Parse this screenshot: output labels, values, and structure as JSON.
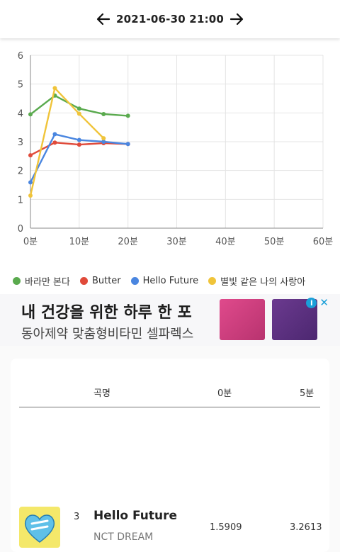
{
  "header": {
    "datetime": "2021-06-30 21:00",
    "prev_icon": "arrow-left-icon",
    "next_icon": "arrow-right-icon"
  },
  "chart_data": {
    "type": "line",
    "x_ticks": [
      "0분",
      "10분",
      "20분",
      "30분",
      "40분",
      "50분",
      "60분"
    ],
    "y_ticks": [
      "0",
      "1",
      "2",
      "3",
      "4",
      "5",
      "6"
    ],
    "xlim": [
      0,
      60
    ],
    "ylim": [
      0,
      6
    ],
    "grid": true,
    "legend_position": "bottom",
    "series": [
      {
        "name": "바라만 본다",
        "color": "#5aaa4e",
        "x": [
          0,
          5,
          10,
          15,
          20
        ],
        "values": [
          3.95,
          4.6,
          4.15,
          3.96,
          3.9
        ]
      },
      {
        "name": "Butter",
        "color": "#e04a3a",
        "x": [
          0,
          5,
          10,
          15,
          20
        ],
        "values": [
          2.53,
          2.97,
          2.9,
          2.95,
          2.92
        ]
      },
      {
        "name": "Hello Future",
        "color": "#4a86e0",
        "x": [
          0,
          5,
          10,
          15,
          20
        ],
        "values": [
          1.59,
          3.26,
          3.06,
          3.0,
          2.92
        ]
      },
      {
        "name": "별빛 같은 나의 사랑아",
        "color": "#f0c43a",
        "x": [
          0,
          5,
          10,
          15
        ],
        "values": [
          1.13,
          4.86,
          3.97,
          3.12
        ]
      }
    ]
  },
  "ad": {
    "line1": "내 건강을 위한 하루 한 포",
    "line2": "동아제약 맞춤형비타민 셀파렉스",
    "info_icon": "info-icon",
    "close_icon": "close-icon"
  },
  "table": {
    "headers": {
      "name": "곡명",
      "col0": "0분",
      "col5": "5분"
    },
    "rows": [
      {
        "rank": "3",
        "title": "Hello Future",
        "artist": "NCT DREAM",
        "v0": "1.5909",
        "v5": "3.2613"
      }
    ]
  }
}
